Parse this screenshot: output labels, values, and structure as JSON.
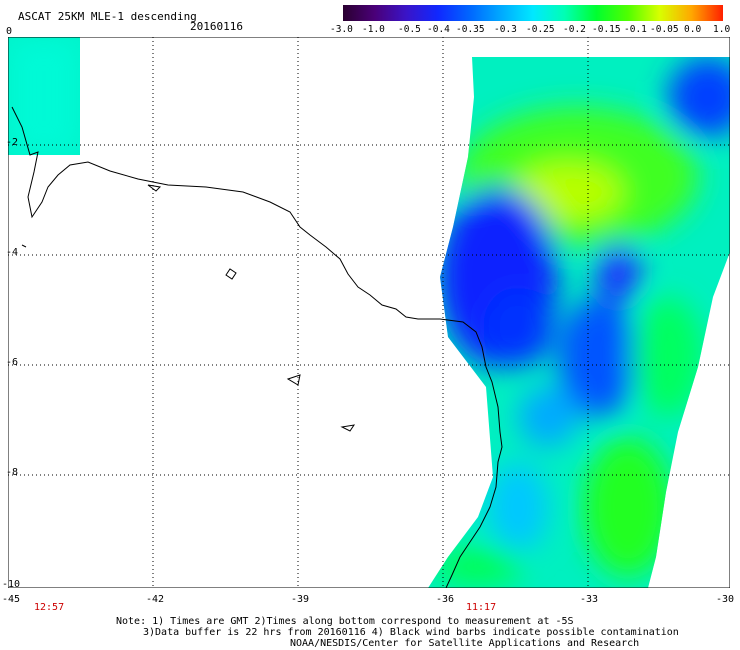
{
  "header": {
    "title": "ASCAT 25KM MLE-1 descending",
    "date": "20160116"
  },
  "colorbar": {
    "labels": [
      "-3.0",
      "-1.0",
      "-0.5",
      "-0.4",
      "-0.35",
      "-0.3",
      "-0.25",
      "-0.2",
      "-0.15",
      "-0.1",
      "-0.05",
      "0.0",
      "1.0"
    ],
    "colors": [
      "#2a0030",
      "#4a0078",
      "#3a14c8",
      "#1028ff",
      "#0066ff",
      "#00aaff",
      "#00e8ff",
      "#00ffb4",
      "#00ff30",
      "#50ff00",
      "#d8ff00",
      "#ffa800",
      "#ff2000"
    ]
  },
  "map": {
    "lon_range": [
      -45,
      -30
    ],
    "lat_range": [
      -10,
      0
    ],
    "y_ticks": [
      "0",
      "-2",
      "-4",
      "-6",
      "-8",
      "-10"
    ],
    "x_ticks": [
      "-45",
      "-42",
      "-39",
      "-36",
      "-33",
      "-30"
    ]
  },
  "times": [
    "12:57",
    "11:17"
  ],
  "notes": [
    "Note: 1) Times are GMT 2)Times along bottom correspond to measurement at -5S",
    "3)Data buffer is 22 hrs from 20160116 4) Black wind barbs indicate possible contamination",
    "NOAA/NESDIS/Center for Satellite Applications and Research"
  ]
}
